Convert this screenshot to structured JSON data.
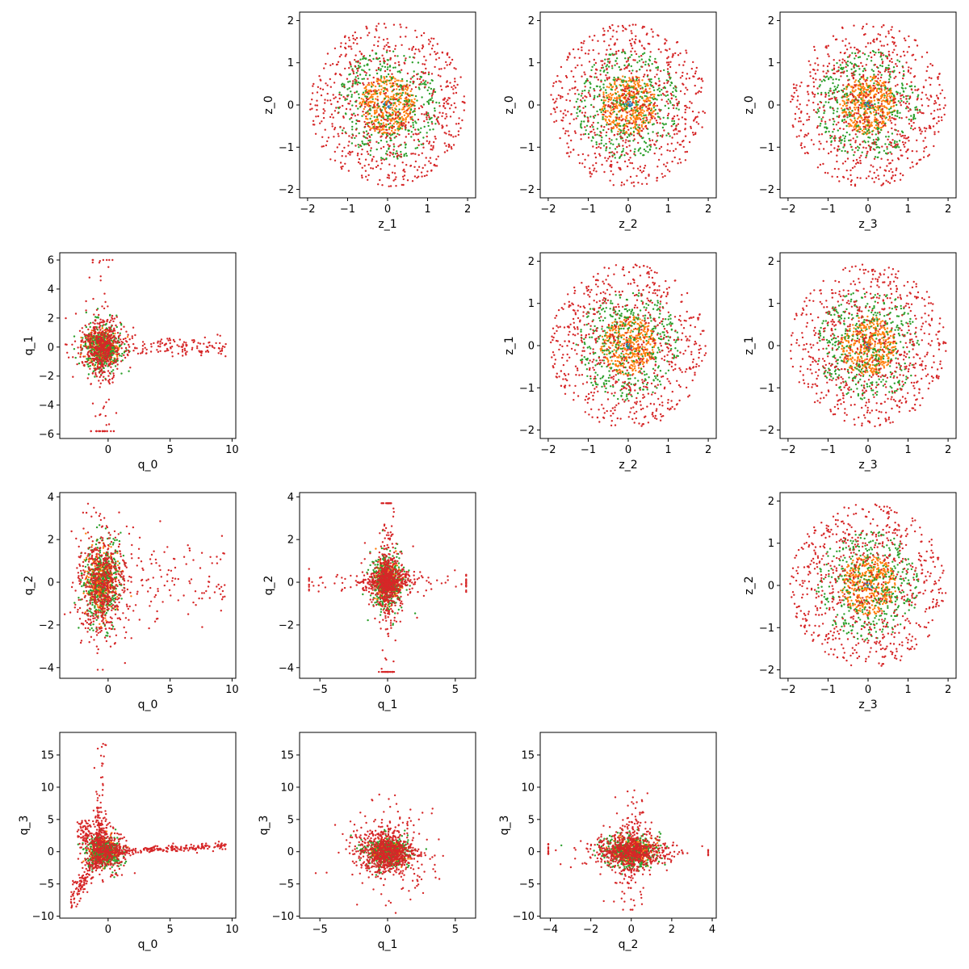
{
  "figure": {
    "background": "#ffffff"
  },
  "series_colors": [
    "#1f77b4",
    "#ff7f0e",
    "#2ca02c",
    "#d62728"
  ],
  "chart_data": [
    {
      "type": "scatter",
      "row": 0,
      "col": 1,
      "xlabel": "z_1",
      "ylabel": "z_0",
      "shape": "disc",
      "xlim": [
        -2.2,
        2.2
      ],
      "ylim": [
        -2.2,
        2.2
      ],
      "xticks": [
        -2,
        -1,
        0,
        1,
        2
      ],
      "yticks": [
        -2,
        -1,
        0,
        1,
        2
      ],
      "series": [
        {
          "color": "#1f77b4",
          "radius": 0.1,
          "n": 20
        },
        {
          "color": "#ff7f0e",
          "radius": 0.7,
          "n": 400
        },
        {
          "color": "#2ca02c",
          "radius": 1.3,
          "n": 400
        },
        {
          "color": "#d62728",
          "radius": 1.95,
          "n": 700
        }
      ]
    },
    {
      "type": "scatter",
      "row": 0,
      "col": 2,
      "xlabel": "z_2",
      "ylabel": "z_0",
      "shape": "disc",
      "xlim": [
        -2.2,
        2.2
      ],
      "ylim": [
        -2.2,
        2.2
      ],
      "xticks": [
        -2,
        -1,
        0,
        1,
        2
      ],
      "yticks": [
        -2,
        -1,
        0,
        1,
        2
      ],
      "series": [
        {
          "color": "#1f77b4",
          "radius": 0.1,
          "n": 20
        },
        {
          "color": "#ff7f0e",
          "radius": 0.7,
          "n": 400
        },
        {
          "color": "#2ca02c",
          "radius": 1.3,
          "n": 400
        },
        {
          "color": "#d62728",
          "radius": 1.95,
          "n": 700
        }
      ]
    },
    {
      "type": "scatter",
      "row": 0,
      "col": 3,
      "xlabel": "z_3",
      "ylabel": "z_0",
      "shape": "disc",
      "xlim": [
        -2.2,
        2.2
      ],
      "ylim": [
        -2.2,
        2.2
      ],
      "xticks": [
        -2,
        -1,
        0,
        1,
        2
      ],
      "yticks": [
        -2,
        -1,
        0,
        1,
        2
      ],
      "series": [
        {
          "color": "#1f77b4",
          "radius": 0.1,
          "n": 20
        },
        {
          "color": "#ff7f0e",
          "radius": 0.7,
          "n": 400
        },
        {
          "color": "#2ca02c",
          "radius": 1.3,
          "n": 400
        },
        {
          "color": "#d62728",
          "radius": 1.95,
          "n": 700
        }
      ]
    },
    {
      "type": "scatter",
      "row": 1,
      "col": 0,
      "xlabel": "q_0",
      "ylabel": "q_1",
      "shape": "q01",
      "xlim": [
        -3.9,
        10.3
      ],
      "ylim": [
        -6.3,
        6.5
      ],
      "xticks": [
        0,
        5,
        10
      ],
      "yticks": [
        -6,
        -4,
        -2,
        0,
        2,
        4,
        6
      ],
      "series": [
        {
          "color": "#1f77b4",
          "n": 20
        },
        {
          "color": "#ff7f0e",
          "n": 350
        },
        {
          "color": "#2ca02c",
          "n": 350
        },
        {
          "color": "#d62728",
          "n": 700
        }
      ]
    },
    {
      "type": "scatter",
      "row": 1,
      "col": 2,
      "xlabel": "z_2",
      "ylabel": "z_1",
      "shape": "disc",
      "xlim": [
        -2.2,
        2.2
      ],
      "ylim": [
        -2.2,
        2.2
      ],
      "xticks": [
        -2,
        -1,
        0,
        1,
        2
      ],
      "yticks": [
        -2,
        -1,
        0,
        1,
        2
      ],
      "series": [
        {
          "color": "#1f77b4",
          "radius": 0.1,
          "n": 20
        },
        {
          "color": "#ff7f0e",
          "radius": 0.7,
          "n": 400
        },
        {
          "color": "#2ca02c",
          "radius": 1.3,
          "n": 400
        },
        {
          "color": "#d62728",
          "radius": 1.95,
          "n": 700
        }
      ]
    },
    {
      "type": "scatter",
      "row": 1,
      "col": 3,
      "xlabel": "z_3",
      "ylabel": "z_1",
      "shape": "disc",
      "xlim": [
        -2.2,
        2.2
      ],
      "ylim": [
        -2.2,
        2.2
      ],
      "xticks": [
        -2,
        -1,
        0,
        1,
        2
      ],
      "yticks": [
        -2,
        -1,
        0,
        1,
        2
      ],
      "series": [
        {
          "color": "#1f77b4",
          "radius": 0.1,
          "n": 20
        },
        {
          "color": "#ff7f0e",
          "radius": 0.7,
          "n": 400
        },
        {
          "color": "#2ca02c",
          "radius": 1.3,
          "n": 400
        },
        {
          "color": "#d62728",
          "radius": 1.95,
          "n": 700
        }
      ]
    },
    {
      "type": "scatter",
      "row": 2,
      "col": 0,
      "xlabel": "q_0",
      "ylabel": "q_2",
      "shape": "q02",
      "xlim": [
        -3.9,
        10.3
      ],
      "ylim": [
        -4.5,
        4.2
      ],
      "xticks": [
        0,
        5,
        10
      ],
      "yticks": [
        -4,
        -2,
        0,
        2,
        4
      ],
      "series": [
        {
          "color": "#1f77b4",
          "n": 20
        },
        {
          "color": "#ff7f0e",
          "n": 350
        },
        {
          "color": "#2ca02c",
          "n": 350
        },
        {
          "color": "#d62728",
          "n": 700
        }
      ]
    },
    {
      "type": "scatter",
      "row": 2,
      "col": 1,
      "xlabel": "q_1",
      "ylabel": "q_2",
      "shape": "star",
      "xlim": [
        -6.5,
        6.5
      ],
      "ylim": [
        -4.5,
        4.2
      ],
      "xticks": [
        -5,
        0,
        5
      ],
      "yticks": [
        -4,
        -2,
        0,
        2,
        4
      ],
      "series": [
        {
          "color": "#1f77b4",
          "n": 20
        },
        {
          "color": "#ff7f0e",
          "n": 350
        },
        {
          "color": "#2ca02c",
          "n": 350
        },
        {
          "color": "#d62728",
          "n": 900
        }
      ]
    },
    {
      "type": "scatter",
      "row": 2,
      "col": 3,
      "xlabel": "z_3",
      "ylabel": "z_2",
      "shape": "disc",
      "xlim": [
        -2.2,
        2.2
      ],
      "ylim": [
        -2.2,
        2.2
      ],
      "xticks": [
        -2,
        -1,
        0,
        1,
        2
      ],
      "yticks": [
        -2,
        -1,
        0,
        1,
        2
      ],
      "series": [
        {
          "color": "#1f77b4",
          "radius": 0.1,
          "n": 20
        },
        {
          "color": "#ff7f0e",
          "radius": 0.7,
          "n": 400
        },
        {
          "color": "#2ca02c",
          "radius": 1.3,
          "n": 400
        },
        {
          "color": "#d62728",
          "radius": 1.95,
          "n": 700
        }
      ]
    },
    {
      "type": "scatter",
      "row": 3,
      "col": 0,
      "xlabel": "q_0",
      "ylabel": "q_3",
      "shape": "q03",
      "xlim": [
        -3.9,
        10.3
      ],
      "ylim": [
        -10.3,
        18.5
      ],
      "xticks": [
        0,
        5,
        10
      ],
      "yticks": [
        -10,
        -5,
        0,
        5,
        10,
        15
      ],
      "series": [
        {
          "color": "#1f77b4",
          "n": 20
        },
        {
          "color": "#ff7f0e",
          "n": 350
        },
        {
          "color": "#2ca02c",
          "n": 350
        },
        {
          "color": "#d62728",
          "n": 900
        }
      ]
    },
    {
      "type": "scatter",
      "row": 3,
      "col": 1,
      "xlabel": "q_1",
      "ylabel": "q_3",
      "shape": "q13",
      "xlim": [
        -6.5,
        6.5
      ],
      "ylim": [
        -10.3,
        18.5
      ],
      "xticks": [
        -5,
        0,
        5
      ],
      "yticks": [
        -10,
        -5,
        0,
        5,
        10,
        15
      ],
      "series": [
        {
          "color": "#1f77b4",
          "n": 20
        },
        {
          "color": "#ff7f0e",
          "n": 350
        },
        {
          "color": "#2ca02c",
          "n": 350
        },
        {
          "color": "#d62728",
          "n": 800
        }
      ]
    },
    {
      "type": "scatter",
      "row": 3,
      "col": 2,
      "xlabel": "q_2",
      "ylabel": "q_3",
      "shape": "q23",
      "xlim": [
        -4.5,
        4.2
      ],
      "ylim": [
        -10.3,
        18.5
      ],
      "xticks": [
        -4,
        -2,
        0,
        2,
        4
      ],
      "yticks": [
        -10,
        -5,
        0,
        5,
        10,
        15
      ],
      "series": [
        {
          "color": "#1f77b4",
          "n": 20
        },
        {
          "color": "#ff7f0e",
          "n": 350
        },
        {
          "color": "#2ca02c",
          "n": 350
        },
        {
          "color": "#d62728",
          "n": 800
        }
      ]
    }
  ]
}
